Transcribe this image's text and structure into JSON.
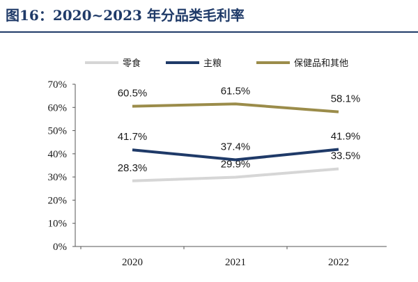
{
  "figure": {
    "title": "图16：2020~2023 年分品类毛利率"
  },
  "chart_data": {
    "type": "line",
    "title": "图16：2020~2023 年分品类毛利率",
    "xlabel": "",
    "ylabel": "",
    "categories": [
      "2020",
      "2021",
      "2022"
    ],
    "ylim": [
      0,
      70
    ],
    "yticks": [
      0,
      10,
      20,
      30,
      40,
      50,
      60,
      70
    ],
    "ytick_labels": [
      "0%",
      "10%",
      "20%",
      "30%",
      "40%",
      "50%",
      "60%",
      "70%"
    ],
    "legend_position": "top",
    "grid": false,
    "series": [
      {
        "name": "零食",
        "color": "#d6d6d6",
        "values": [
          28.3,
          29.9,
          33.5
        ],
        "labels": [
          "28.3%",
          "29.9%",
          "33.5%"
        ]
      },
      {
        "name": "主粮",
        "color": "#1f3a68",
        "values": [
          41.7,
          37.4,
          41.9
        ],
        "labels": [
          "41.7%",
          "37.4%",
          "41.9%"
        ]
      },
      {
        "name": "保健品和其他",
        "color": "#9b8c4a",
        "values": [
          60.5,
          61.5,
          58.1
        ],
        "labels": [
          "60.5%",
          "61.5%",
          "58.1%"
        ]
      }
    ]
  }
}
